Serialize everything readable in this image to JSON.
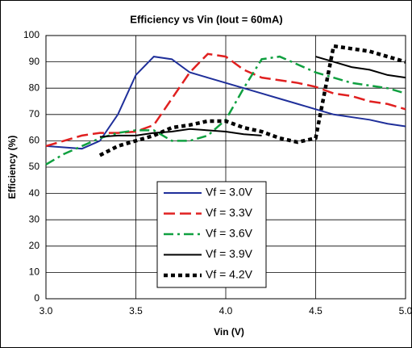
{
  "chart_data": {
    "type": "line",
    "title": "Efficiency vs Vin (Iout = 60mA)",
    "xlabel": "Vin (V)",
    "ylabel": "Efficiency (%)",
    "x": [
      3.0,
      3.1,
      3.2,
      3.3,
      3.4,
      3.5,
      3.6,
      3.7,
      3.8,
      3.9,
      4.0,
      4.1,
      4.2,
      4.3,
      4.4,
      4.5,
      4.6,
      4.7,
      4.8,
      4.9,
      5.0
    ],
    "series": [
      {
        "name": "Vf = 3.0V",
        "color": "#1f2f9a",
        "style": "solid",
        "values": [
          58,
          57.5,
          57,
          60,
          70,
          85,
          92,
          91,
          86,
          84,
          82,
          80,
          78,
          76,
          74,
          72,
          70,
          69,
          68,
          66.5,
          65.5
        ]
      },
      {
        "name": "Vf = 3.3V",
        "color": "#e02020",
        "style": "dashed",
        "values": [
          58,
          60,
          62,
          63,
          63,
          63.5,
          66,
          76,
          86,
          93,
          92,
          87,
          84,
          83,
          82,
          80.5,
          78,
          77,
          75,
          74,
          72
        ]
      },
      {
        "name": "Vf = 3.6V",
        "color": "#10a040",
        "style": "dashdot",
        "values": [
          51,
          55,
          58,
          61,
          63,
          64,
          64,
          60,
          60,
          62,
          68,
          80,
          91,
          92,
          89,
          86,
          84,
          82,
          81,
          80,
          78
        ]
      },
      {
        "name": "Vf = 3.9V",
        "color": "#000000",
        "style": "solid",
        "values": [
          null,
          null,
          null,
          61.5,
          62,
          62,
          63,
          63.5,
          64.5,
          64,
          63.5,
          62.5,
          62,
          null,
          null,
          92,
          90,
          88,
          87,
          85,
          84
        ]
      },
      {
        "name": "Vf = 4.2V",
        "color": "#000000",
        "style": "dotted",
        "values": [
          null,
          null,
          null,
          54.5,
          58,
          60,
          62,
          65,
          66,
          67.5,
          67.5,
          65,
          63.5,
          61,
          59.5,
          61,
          96,
          95,
          94,
          92,
          90
        ]
      }
    ],
    "xlim": [
      3.0,
      5.0
    ],
    "xticks": [
      {
        "value": 3.0,
        "label": "3.0"
      },
      3.5,
      {
        "value": 4.0,
        "label": "4.0"
      },
      4.5,
      {
        "value": 5.0,
        "label": "5.0"
      }
    ],
    "ylim": [
      0,
      100
    ],
    "yticks": [
      0,
      10,
      20,
      30,
      40,
      50,
      60,
      70,
      80,
      90,
      100
    ],
    "grid": true
  }
}
